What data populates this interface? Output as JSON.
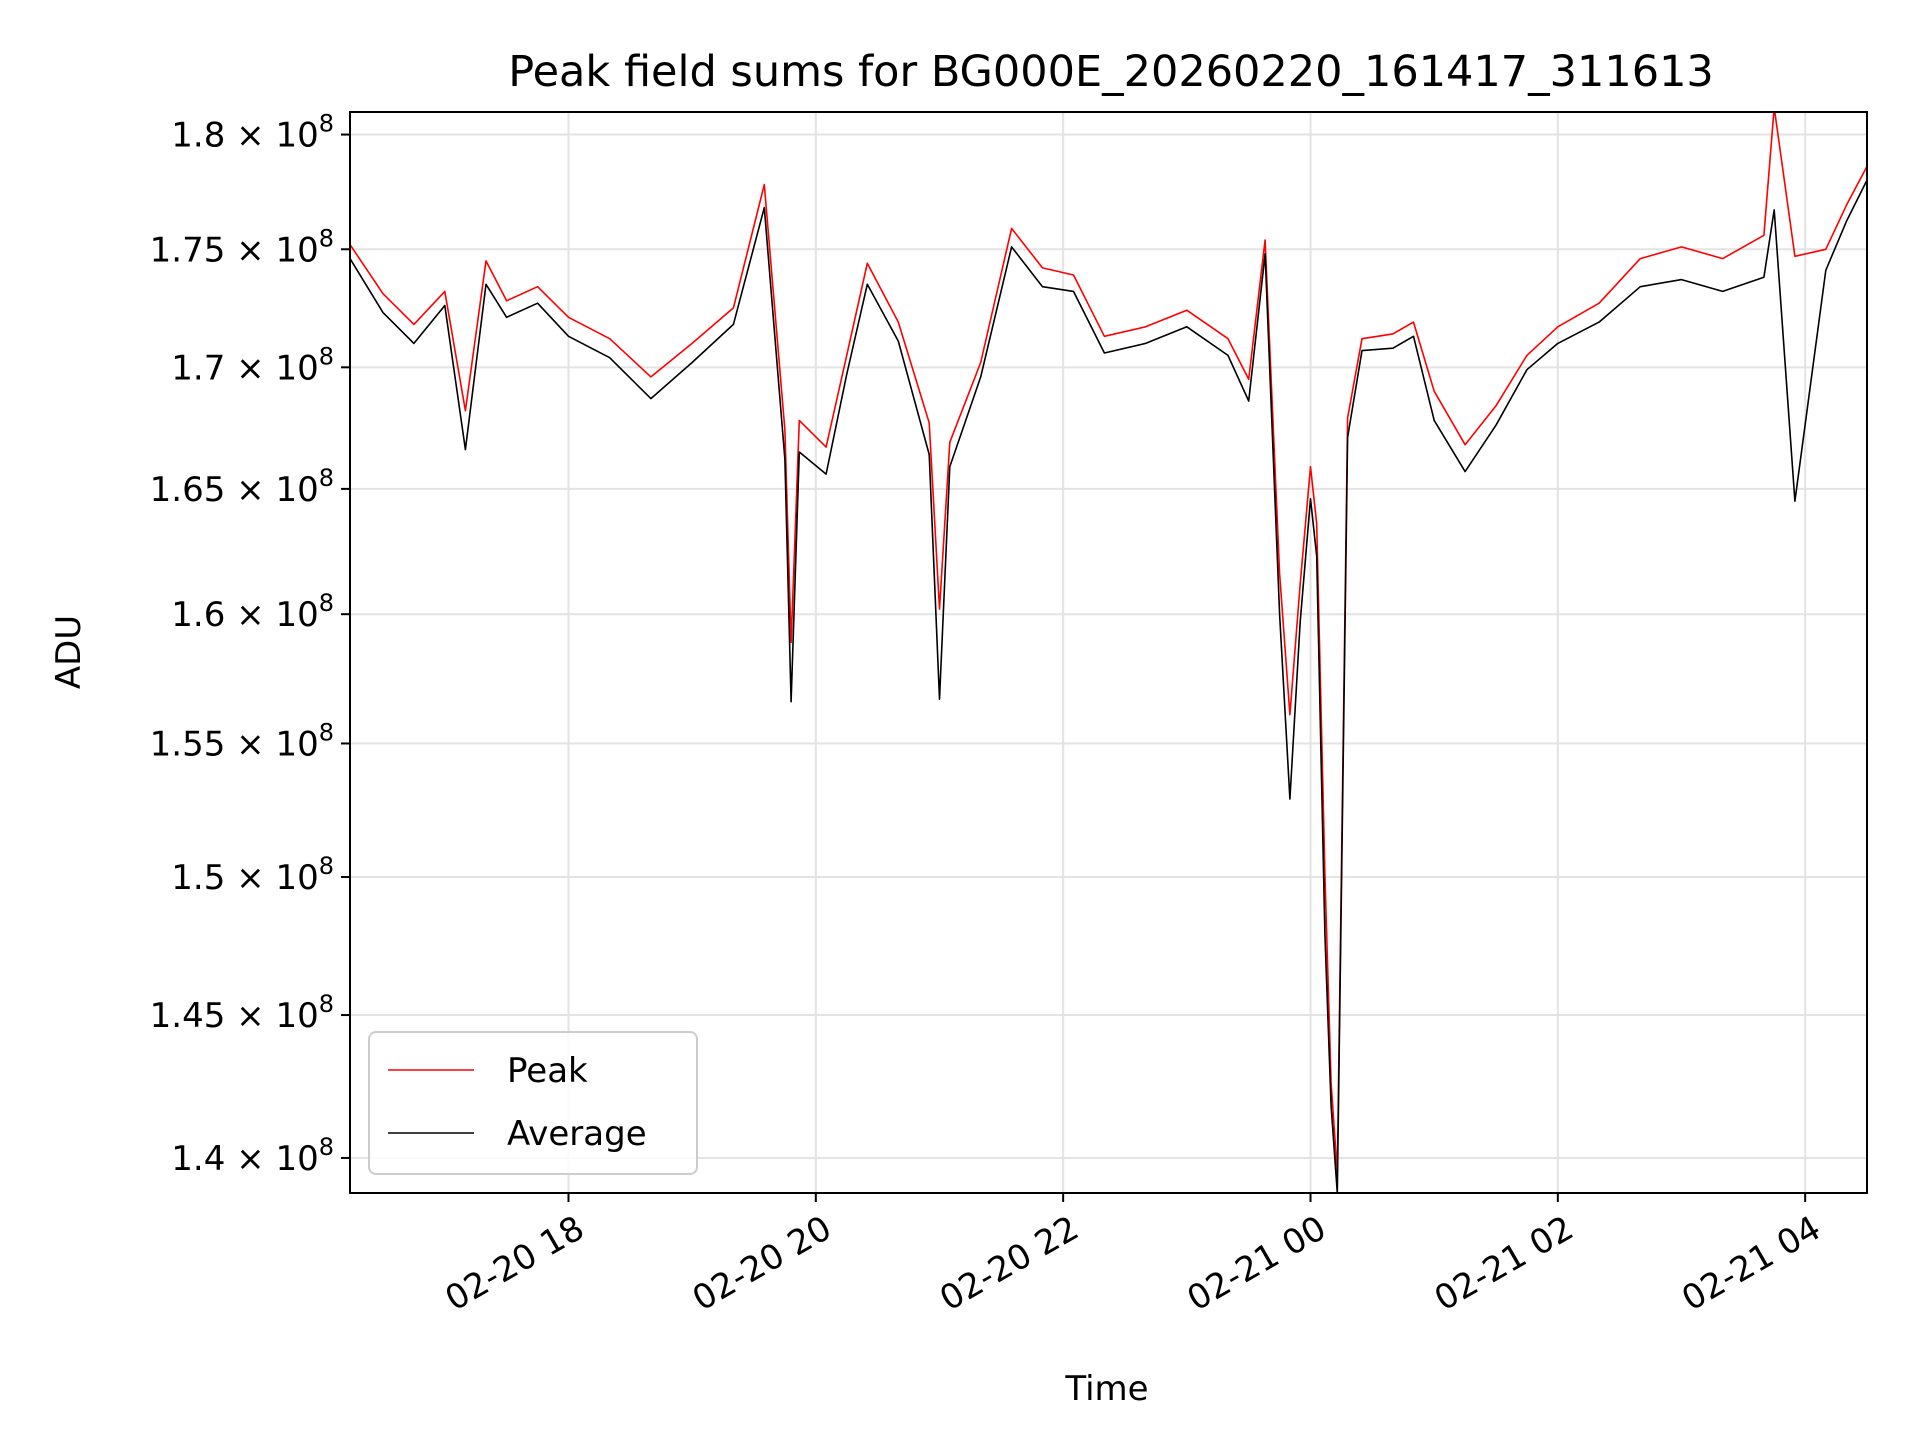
{
  "chart_data": {
    "type": "line",
    "title": "Peak field sums for BG000E_20260220_161417_311613",
    "xlabel": "Time",
    "ylabel": "ADU",
    "x_axis": {
      "type": "datetime",
      "range": [
        "2026-02-20 16:14",
        "2026-02-21 04:30"
      ],
      "tick_labels": [
        "02-20 18",
        "02-20 20",
        "02-20 22",
        "02-21 00",
        "02-21 02",
        "02-21 04"
      ],
      "ticks": [
        "2026-02-20 18:00",
        "2026-02-20 20:00",
        "2026-02-20 22:00",
        "2026-02-21 00:00",
        "2026-02-21 02:00",
        "2026-02-21 04:00"
      ]
    },
    "y_axis": {
      "scale": "log",
      "range": [
        138800000,
        181000000
      ],
      "ticks": [
        140000000,
        145000000,
        150000000,
        155000000,
        160000000,
        165000000,
        170000000,
        175000000,
        180000000
      ],
      "tick_labels": [
        {
          "mantissa": "1.4",
          "exponent": "8"
        },
        {
          "mantissa": "1.45",
          "exponent": "8"
        },
        {
          "mantissa": "1.5",
          "exponent": "8"
        },
        {
          "mantissa": "1.55",
          "exponent": "8"
        },
        {
          "mantissa": "1.6",
          "exponent": "8"
        },
        {
          "mantissa": "1.65",
          "exponent": "8"
        },
        {
          "mantissa": "1.7",
          "exponent": "8"
        },
        {
          "mantissa": "1.75",
          "exponent": "8"
        },
        {
          "mantissa": "1.8",
          "exponent": "8"
        }
      ]
    },
    "grid": true,
    "legend": {
      "position": "lower-left",
      "entries": [
        "Peak",
        "Average"
      ]
    },
    "times_symbol": "×",
    "base_label": "10",
    "series": [
      {
        "name": "Peak",
        "color": "#ff0000",
        "points": [
          [
            "2026-02-20 16:14",
            175200000
          ],
          [
            "2026-02-20 16:30",
            173100000
          ],
          [
            "2026-02-20 16:45",
            171800000
          ],
          [
            "2026-02-20 17:00",
            173200000
          ],
          [
            "2026-02-20 17:10",
            168200000
          ],
          [
            "2026-02-20 17:20",
            174500000
          ],
          [
            "2026-02-20 17:30",
            172800000
          ],
          [
            "2026-02-20 17:45",
            173400000
          ],
          [
            "2026-02-20 18:00",
            172100000
          ],
          [
            "2026-02-20 18:20",
            171200000
          ],
          [
            "2026-02-20 18:40",
            169600000
          ],
          [
            "2026-02-20 19:00",
            171000000
          ],
          [
            "2026-02-20 19:20",
            172500000
          ],
          [
            "2026-02-20 19:35",
            177800000
          ],
          [
            "2026-02-20 19:45",
            167400000
          ],
          [
            "2026-02-20 19:48",
            158900000
          ],
          [
            "2026-02-20 19:52",
            167800000
          ],
          [
            "2026-02-20 20:05",
            166700000
          ],
          [
            "2026-02-20 20:15",
            170500000
          ],
          [
            "2026-02-20 20:25",
            174400000
          ],
          [
            "2026-02-20 20:40",
            171900000
          ],
          [
            "2026-02-20 20:55",
            167700000
          ],
          [
            "2026-02-20 21:00",
            160200000
          ],
          [
            "2026-02-20 21:05",
            166900000
          ],
          [
            "2026-02-20 21:20",
            170200000
          ],
          [
            "2026-02-20 21:35",
            175900000
          ],
          [
            "2026-02-20 21:50",
            174200000
          ],
          [
            "2026-02-20 22:05",
            173900000
          ],
          [
            "2026-02-20 22:20",
            171300000
          ],
          [
            "2026-02-20 22:40",
            171700000
          ],
          [
            "2026-02-20 23:00",
            172400000
          ],
          [
            "2026-02-20 23:20",
            171200000
          ],
          [
            "2026-02-20 23:30",
            169500000
          ],
          [
            "2026-02-20 23:38",
            175400000
          ],
          [
            "2026-02-20 23:45",
            161600000
          ],
          [
            "2026-02-20 23:50",
            156100000
          ],
          [
            "2026-02-20 23:55",
            161200000
          ],
          [
            "2026-02-21 00:00",
            165900000
          ],
          [
            "2026-02-21 00:03",
            163600000
          ],
          [
            "2026-02-21 00:07",
            150100000
          ],
          [
            "2026-02-21 00:10",
            142600000
          ],
          [
            "2026-02-21 00:13",
            139500000
          ],
          [
            "2026-02-21 00:18",
            167900000
          ],
          [
            "2026-02-21 00:25",
            171200000
          ],
          [
            "2026-02-21 00:40",
            171400000
          ],
          [
            "2026-02-21 00:50",
            171900000
          ],
          [
            "2026-02-21 01:00",
            169000000
          ],
          [
            "2026-02-21 01:15",
            166800000
          ],
          [
            "2026-02-21 01:30",
            168400000
          ],
          [
            "2026-02-21 01:45",
            170500000
          ],
          [
            "2026-02-21 02:00",
            171700000
          ],
          [
            "2026-02-21 02:20",
            172700000
          ],
          [
            "2026-02-21 02:40",
            174600000
          ],
          [
            "2026-02-21 03:00",
            175100000
          ],
          [
            "2026-02-21 03:20",
            174600000
          ],
          [
            "2026-02-21 03:40",
            175600000
          ],
          [
            "2026-02-21 03:45",
            181200000
          ],
          [
            "2026-02-21 03:55",
            174700000
          ],
          [
            "2026-02-21 04:10",
            175000000
          ],
          [
            "2026-02-21 04:20",
            176900000
          ],
          [
            "2026-02-21 04:30",
            178600000
          ]
        ]
      },
      {
        "name": "Average",
        "color": "#000000",
        "points": [
          [
            "2026-02-20 16:14",
            174600000
          ],
          [
            "2026-02-20 16:30",
            172300000
          ],
          [
            "2026-02-20 16:45",
            171000000
          ],
          [
            "2026-02-20 17:00",
            172600000
          ],
          [
            "2026-02-20 17:10",
            166600000
          ],
          [
            "2026-02-20 17:20",
            173500000
          ],
          [
            "2026-02-20 17:30",
            172100000
          ],
          [
            "2026-02-20 17:45",
            172700000
          ],
          [
            "2026-02-20 18:00",
            171300000
          ],
          [
            "2026-02-20 18:20",
            170400000
          ],
          [
            "2026-02-20 18:40",
            168700000
          ],
          [
            "2026-02-20 19:00",
            170200000
          ],
          [
            "2026-02-20 19:20",
            171800000
          ],
          [
            "2026-02-20 19:35",
            176800000
          ],
          [
            "2026-02-20 19:45",
            166200000
          ],
          [
            "2026-02-20 19:48",
            156600000
          ],
          [
            "2026-02-20 19:52",
            166500000
          ],
          [
            "2026-02-20 20:05",
            165600000
          ],
          [
            "2026-02-20 20:15",
            169700000
          ],
          [
            "2026-02-20 20:25",
            173500000
          ],
          [
            "2026-02-20 20:40",
            171100000
          ],
          [
            "2026-02-20 20:55",
            166400000
          ],
          [
            "2026-02-20 21:00",
            156700000
          ],
          [
            "2026-02-20 21:05",
            165900000
          ],
          [
            "2026-02-20 21:20",
            169600000
          ],
          [
            "2026-02-20 21:35",
            175100000
          ],
          [
            "2026-02-20 21:50",
            173400000
          ],
          [
            "2026-02-20 22:05",
            173200000
          ],
          [
            "2026-02-20 22:20",
            170600000
          ],
          [
            "2026-02-20 22:40",
            171000000
          ],
          [
            "2026-02-20 23:00",
            171700000
          ],
          [
            "2026-02-20 23:20",
            170500000
          ],
          [
            "2026-02-20 23:30",
            168600000
          ],
          [
            "2026-02-20 23:38",
            174800000
          ],
          [
            "2026-02-20 23:45",
            160000000
          ],
          [
            "2026-02-20 23:50",
            152900000
          ],
          [
            "2026-02-20 23:55",
            159700000
          ],
          [
            "2026-02-21 00:00",
            164600000
          ],
          [
            "2026-02-21 00:03",
            162300000
          ],
          [
            "2026-02-21 00:07",
            147900000
          ],
          [
            "2026-02-21 00:10",
            141800000
          ],
          [
            "2026-02-21 00:13",
            138800000
          ],
          [
            "2026-02-21 00:18",
            167100000
          ],
          [
            "2026-02-21 00:25",
            170700000
          ],
          [
            "2026-02-21 00:40",
            170800000
          ],
          [
            "2026-02-21 00:50",
            171300000
          ],
          [
            "2026-02-21 01:00",
            167800000
          ],
          [
            "2026-02-21 01:15",
            165700000
          ],
          [
            "2026-02-21 01:30",
            167600000
          ],
          [
            "2026-02-21 01:45",
            169900000
          ],
          [
            "2026-02-21 02:00",
            171000000
          ],
          [
            "2026-02-21 02:20",
            171900000
          ],
          [
            "2026-02-21 02:40",
            173400000
          ],
          [
            "2026-02-21 03:00",
            173700000
          ],
          [
            "2026-02-21 03:20",
            173200000
          ],
          [
            "2026-02-21 03:40",
            173800000
          ],
          [
            "2026-02-21 03:45",
            176700000
          ],
          [
            "2026-02-21 03:55",
            164500000
          ],
          [
            "2026-02-21 04:10",
            174100000
          ],
          [
            "2026-02-21 04:20",
            176200000
          ],
          [
            "2026-02-21 04:30",
            178000000
          ]
        ]
      }
    ]
  }
}
